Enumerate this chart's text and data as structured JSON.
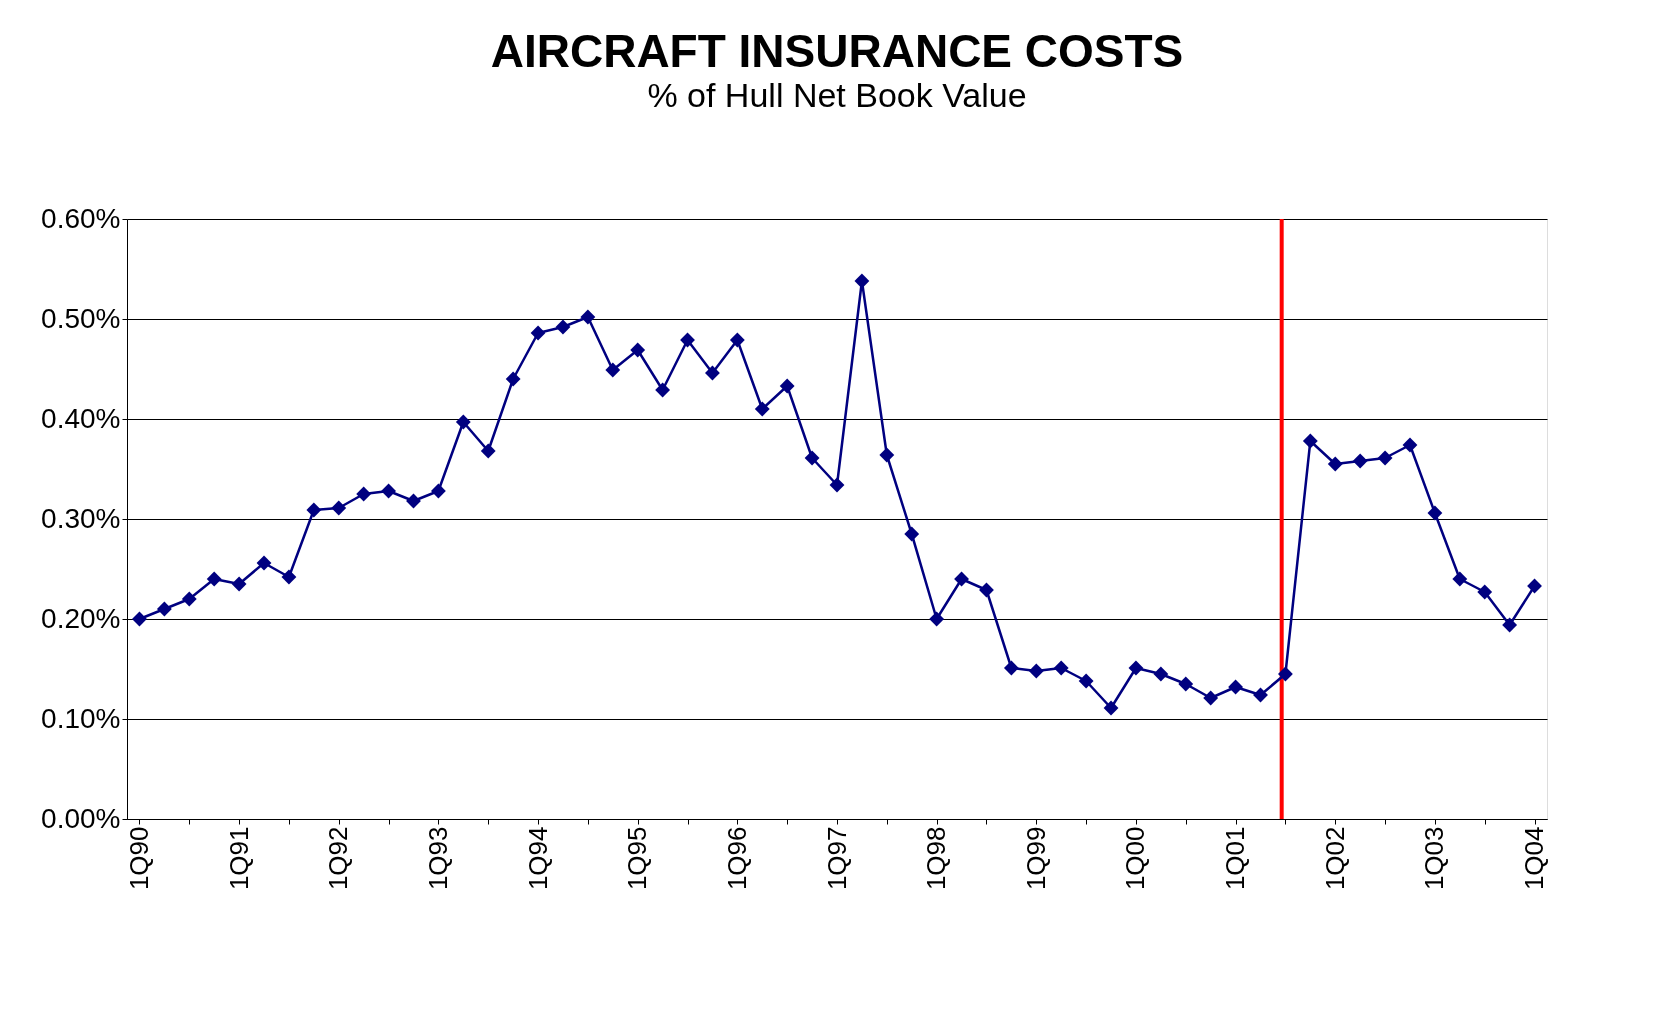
{
  "chart_data": {
    "type": "line",
    "title": "AIRCRAFT INSURANCE COSTS",
    "subtitle": "% of Hull Net Book Value",
    "categories": [
      "1Q90",
      null,
      null,
      null,
      "1Q91",
      null,
      null,
      null,
      "1Q92",
      null,
      null,
      null,
      "1Q93",
      null,
      null,
      null,
      "1Q94",
      null,
      null,
      null,
      "1Q95",
      null,
      null,
      null,
      "1Q96",
      null,
      null,
      null,
      "1Q97",
      null,
      null,
      null,
      "1Q98",
      null,
      null,
      null,
      "1Q99",
      null,
      null,
      null,
      "1Q00",
      null,
      null,
      null,
      "1Q01",
      null,
      null,
      null,
      "1Q02",
      null,
      null,
      null,
      "1Q03",
      null,
      null,
      null,
      "1Q04"
    ],
    "series": [
      {
        "color": "#000080",
        "values": [
          0.2,
          0.21,
          0.22,
          0.24,
          0.235,
          0.256,
          0.242,
          0.309,
          0.311,
          0.325,
          0.328,
          0.318,
          0.328,
          0.397,
          0.368,
          0.44,
          0.486,
          0.492,
          0.502,
          0.449,
          0.469,
          0.429,
          0.479,
          0.446,
          0.479,
          0.41,
          0.433,
          0.361,
          0.334,
          0.538,
          0.364,
          0.285,
          0.2,
          0.24,
          0.229,
          0.151,
          0.148,
          0.151,
          0.138,
          0.111,
          0.151,
          0.145,
          0.135,
          0.121,
          0.132,
          0.124,
          0.145,
          0.378,
          0.355,
          0.358,
          0.361,
          0.374,
          0.306,
          0.24,
          0.227,
          0.194,
          0.233
        ]
      }
    ],
    "ylim": [
      0,
      0.6
    ],
    "yticks": [
      {
        "value": 0,
        "label": "0.00%"
      },
      {
        "value": 0.1,
        "label": "0.10%"
      },
      {
        "value": 0.2,
        "label": "0.20%"
      },
      {
        "value": 0.3,
        "label": "0.30%"
      },
      {
        "value": 0.4,
        "label": "0.40%"
      },
      {
        "value": 0.5,
        "label": "0.50%"
      },
      {
        "value": 0.6,
        "label": "0.60%"
      }
    ],
    "grid": "y",
    "marker": "diamond",
    "line_style": "solid"
  }
}
